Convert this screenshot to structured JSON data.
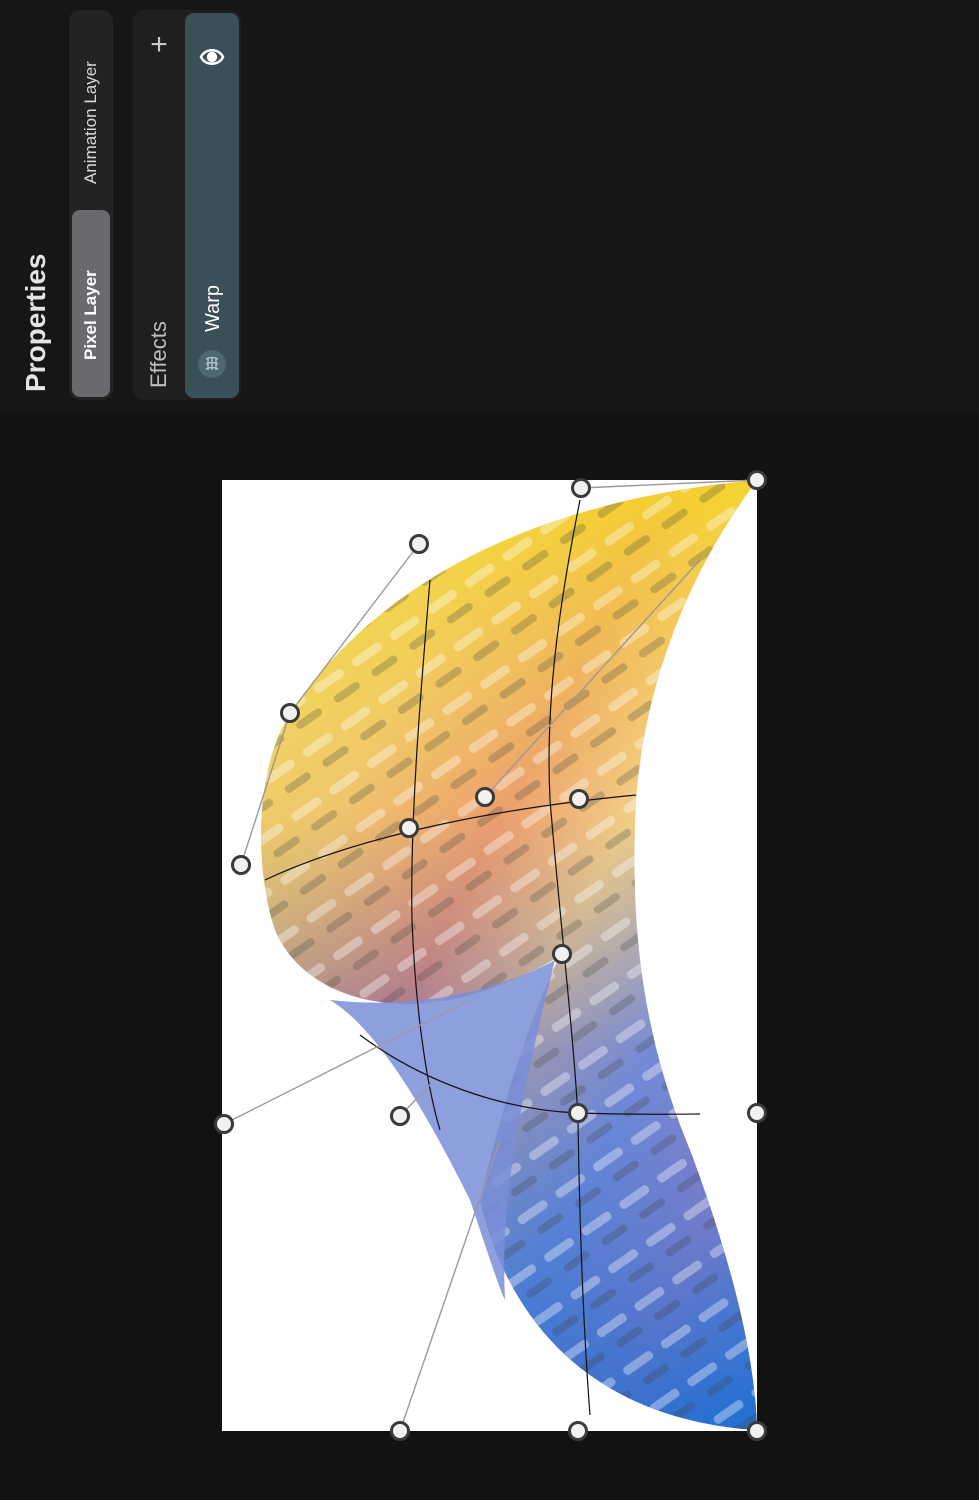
{
  "panel": {
    "title": "Properties",
    "layer_types": [
      "Pixel Layer",
      "Animation Layer"
    ],
    "selected_layer_type": "Pixel Layer",
    "effects_label": "Effects",
    "add_effect_icon": "plus-icon",
    "effects": [
      {
        "label": "Warp",
        "icon": "warp-icon",
        "visibility_icon": "eye-icon",
        "visible": true
      }
    ]
  },
  "canvas": {
    "tool": "warp",
    "handle_icon": "control-point-handle"
  },
  "colors": {
    "panel_bg": "#161616",
    "canvas_bg": "#121212",
    "warp_card": "#3b4f58",
    "selected_segment": "#6b6a6f"
  }
}
